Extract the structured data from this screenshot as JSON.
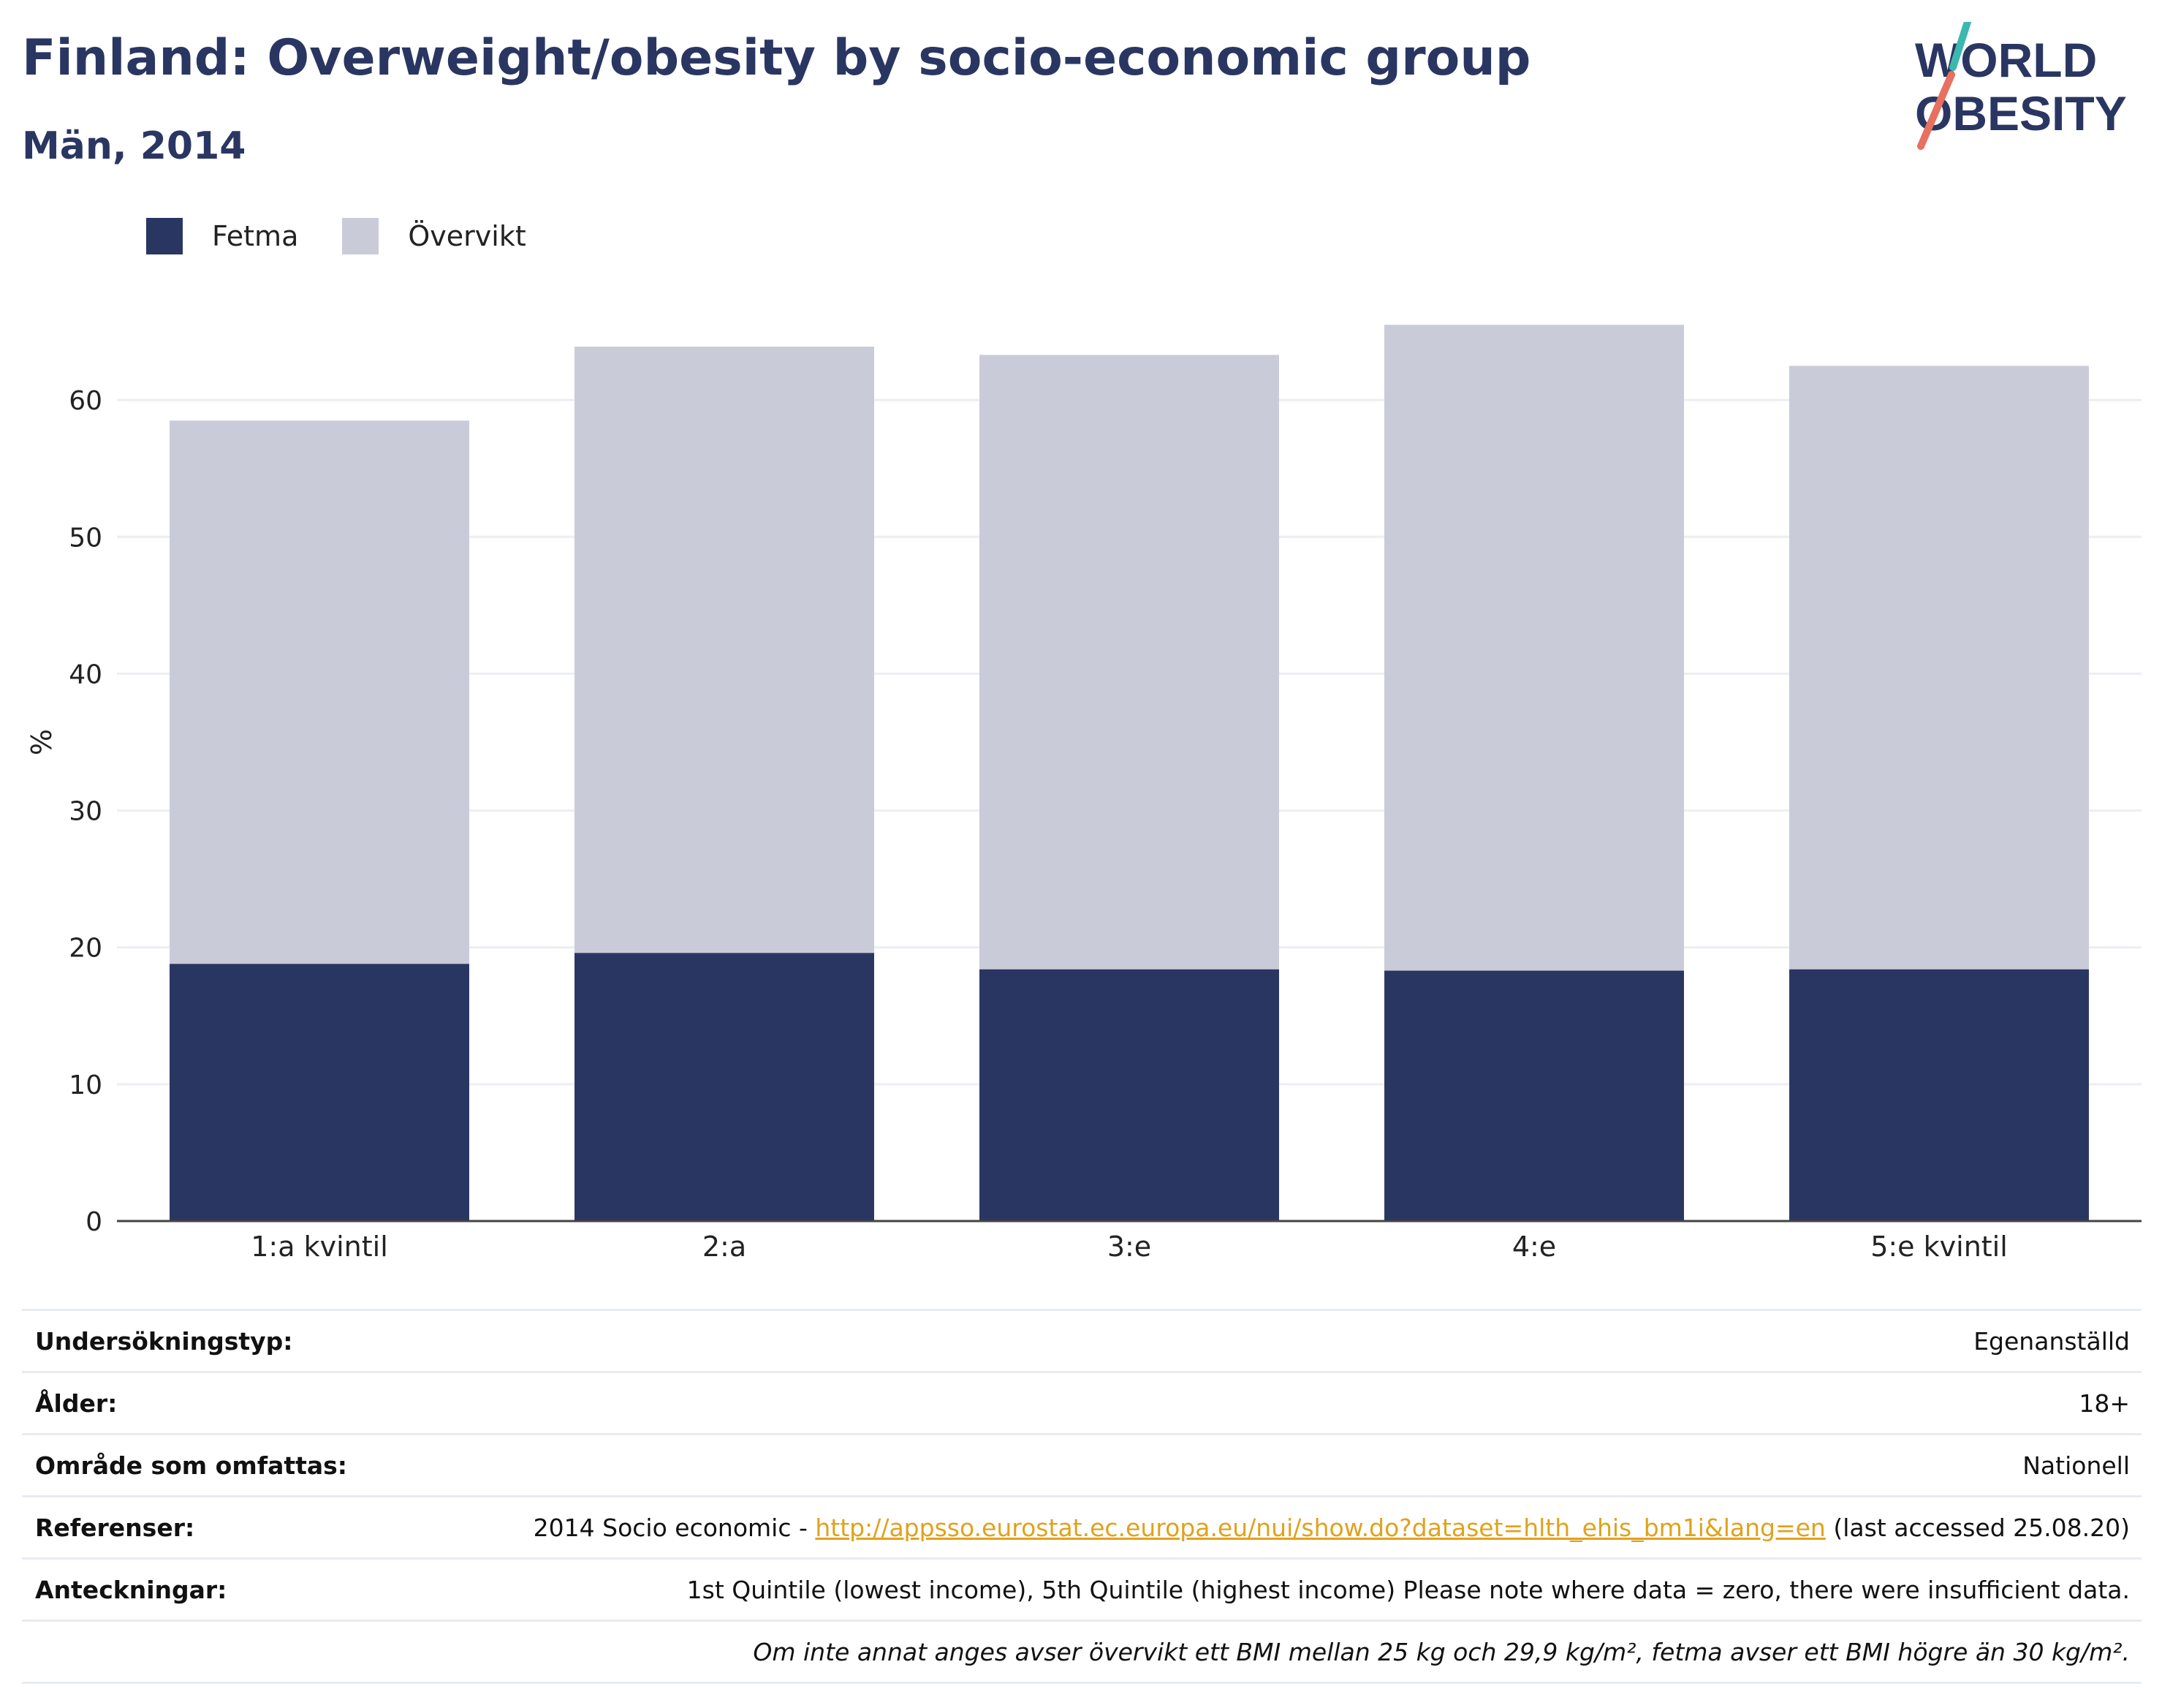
{
  "title": "Finland: Overweight/obesity by socio-economic group",
  "subtitle": "Män, 2014",
  "logo": {
    "line1": "WORLD",
    "line2": "OBESITY"
  },
  "colors": {
    "fetma": "#2a3662",
    "overvikt": "#c9ccd8",
    "text": "#2a3662",
    "link": "#e0a21c"
  },
  "chart_data": {
    "type": "bar",
    "stacked": true,
    "categories": [
      "1:a kvintil",
      "2:a",
      "3:e",
      "4:e",
      "5:e kvintil"
    ],
    "series": [
      {
        "name": "Fetma",
        "values": [
          18.8,
          19.6,
          18.4,
          18.3,
          18.4
        ]
      },
      {
        "name": "Övervikt",
        "values": [
          39.7,
          44.3,
          44.9,
          47.2,
          44.1
        ]
      }
    ],
    "ylabel": "%",
    "xlabel": "",
    "ylim": [
      0,
      70
    ],
    "yticks": [
      0,
      10,
      20,
      30,
      40,
      50,
      60
    ],
    "grid": true,
    "legend": "top-left"
  },
  "meta": {
    "rows": [
      {
        "label": "Undersökningstyp:",
        "value": "Egenanställd"
      },
      {
        "label": "Ålder:",
        "value": "18+"
      },
      {
        "label": "Område som omfattas:",
        "value": "Nationell"
      },
      {
        "label": "Referenser:",
        "value_prefix": "2014 Socio economic - ",
        "link": "http://appsso.eurostat.ec.europa.eu/nui/show.do?dataset=hlth_ehis_bm1i&lang=en",
        "value_suffix": " (last accessed 25.08.20)"
      },
      {
        "label": "Anteckningar:",
        "value": "1st Quintile (lowest income), 5th Quintile (highest income) Please note where data = zero, there were insufficient data."
      },
      {
        "label": "",
        "value": "Om inte annat anges avser övervikt ett BMI mellan 25 kg och 29,9 kg/m², fetma avser ett BMI högre än 30 kg/m²."
      }
    ]
  }
}
